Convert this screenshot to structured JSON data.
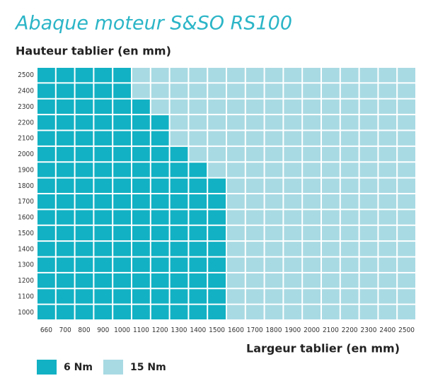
{
  "chart_data": {
    "type": "heatmap",
    "title": "Abaque moteur S&SO RS100",
    "y_axis_title": "Hauteur tablier (en mm)",
    "x_axis_title": "Largeur tablier (en mm)",
    "x_categories": [
      660,
      700,
      800,
      900,
      1000,
      1100,
      1200,
      1300,
      1400,
      1500,
      1600,
      1700,
      1800,
      1900,
      2000,
      2100,
      2200,
      2300,
      2400,
      2500
    ],
    "y_categories": [
      2500,
      2400,
      2300,
      2200,
      2100,
      2000,
      1900,
      1800,
      1700,
      1600,
      1500,
      1400,
      1300,
      1200,
      1100,
      1000
    ],
    "legend": [
      {
        "name": "6 Nm",
        "value": 6,
        "color": "#12b1c3"
      },
      {
        "name": "15 Nm",
        "value": 15,
        "color": "#a8dae3"
      }
    ],
    "values": [
      [
        6,
        6,
        6,
        6,
        6,
        15,
        15,
        15,
        15,
        15,
        15,
        15,
        15,
        15,
        15,
        15,
        15,
        15,
        15,
        15
      ],
      [
        6,
        6,
        6,
        6,
        6,
        15,
        15,
        15,
        15,
        15,
        15,
        15,
        15,
        15,
        15,
        15,
        15,
        15,
        15,
        15
      ],
      [
        6,
        6,
        6,
        6,
        6,
        6,
        15,
        15,
        15,
        15,
        15,
        15,
        15,
        15,
        15,
        15,
        15,
        15,
        15,
        15
      ],
      [
        6,
        6,
        6,
        6,
        6,
        6,
        6,
        15,
        15,
        15,
        15,
        15,
        15,
        15,
        15,
        15,
        15,
        15,
        15,
        15
      ],
      [
        6,
        6,
        6,
        6,
        6,
        6,
        6,
        15,
        15,
        15,
        15,
        15,
        15,
        15,
        15,
        15,
        15,
        15,
        15,
        15
      ],
      [
        6,
        6,
        6,
        6,
        6,
        6,
        6,
        6,
        15,
        15,
        15,
        15,
        15,
        15,
        15,
        15,
        15,
        15,
        15,
        15
      ],
      [
        6,
        6,
        6,
        6,
        6,
        6,
        6,
        6,
        6,
        15,
        15,
        15,
        15,
        15,
        15,
        15,
        15,
        15,
        15,
        15
      ],
      [
        6,
        6,
        6,
        6,
        6,
        6,
        6,
        6,
        6,
        6,
        15,
        15,
        15,
        15,
        15,
        15,
        15,
        15,
        15,
        15
      ],
      [
        6,
        6,
        6,
        6,
        6,
        6,
        6,
        6,
        6,
        6,
        15,
        15,
        15,
        15,
        15,
        15,
        15,
        15,
        15,
        15
      ],
      [
        6,
        6,
        6,
        6,
        6,
        6,
        6,
        6,
        6,
        6,
        15,
        15,
        15,
        15,
        15,
        15,
        15,
        15,
        15,
        15
      ],
      [
        6,
        6,
        6,
        6,
        6,
        6,
        6,
        6,
        6,
        6,
        15,
        15,
        15,
        15,
        15,
        15,
        15,
        15,
        15,
        15
      ],
      [
        6,
        6,
        6,
        6,
        6,
        6,
        6,
        6,
        6,
        6,
        15,
        15,
        15,
        15,
        15,
        15,
        15,
        15,
        15,
        15
      ],
      [
        6,
        6,
        6,
        6,
        6,
        6,
        6,
        6,
        6,
        6,
        15,
        15,
        15,
        15,
        15,
        15,
        15,
        15,
        15,
        15
      ],
      [
        6,
        6,
        6,
        6,
        6,
        6,
        6,
        6,
        6,
        6,
        15,
        15,
        15,
        15,
        15,
        15,
        15,
        15,
        15,
        15
      ],
      [
        6,
        6,
        6,
        6,
        6,
        6,
        6,
        6,
        6,
        6,
        15,
        15,
        15,
        15,
        15,
        15,
        15,
        15,
        15,
        15
      ],
      [
        6,
        6,
        6,
        6,
        6,
        6,
        6,
        6,
        6,
        6,
        15,
        15,
        15,
        15,
        15,
        15,
        15,
        15,
        15,
        15
      ]
    ]
  }
}
